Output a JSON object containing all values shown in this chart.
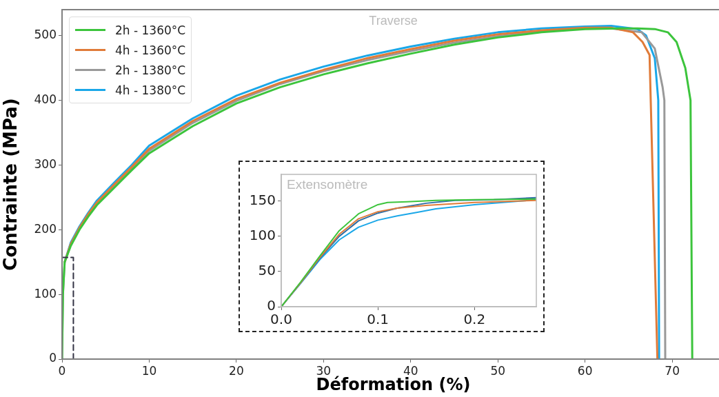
{
  "chart_data": [
    {
      "type": "line",
      "xlabel": "Déformation (%)",
      "ylabel": "Contrainte (MPa)",
      "annotations": [
        "Traverse"
      ],
      "legend": "top left",
      "xlim": [
        0,
        76
      ],
      "xticks": [
        0,
        10,
        20,
        30,
        40,
        50,
        60,
        70
      ],
      "ylim": [
        0,
        540
      ],
      "yticks": [
        0,
        100,
        200,
        300,
        400,
        500
      ],
      "series": [
        {
          "color": "#333344",
          "line_style": "dashed",
          "x": [
            0,
            1.3,
            1.3,
            0
          ],
          "values": [
            157,
            157,
            0,
            0
          ]
        },
        {
          "name": "2h - 1360°C",
          "color": "#3cc43c",
          "x": [
            0,
            0.1,
            0.3,
            1,
            2,
            3,
            4,
            6,
            8,
            10,
            15,
            20,
            25,
            30,
            35,
            40,
            45,
            50,
            55,
            60,
            64,
            66,
            68,
            69.5,
            70.5,
            71.5,
            72.1,
            72.3
          ],
          "values": [
            0,
            100,
            150,
            175,
            200,
            220,
            238,
            265,
            292,
            318,
            360,
            395,
            420,
            440,
            457,
            472,
            486,
            497,
            505,
            510,
            511,
            511,
            510,
            505,
            490,
            450,
            400,
            0
          ]
        },
        {
          "name": "4h - 1360°C",
          "color": "#e07b39",
          "x": [
            0.3,
            1,
            2,
            3,
            4,
            6,
            8,
            10,
            15,
            20,
            25,
            30,
            35,
            40,
            45,
            50,
            55,
            60,
            63,
            65.5,
            66.6,
            67.4,
            68.3
          ],
          "values": [
            150,
            178,
            203,
            224,
            242,
            270,
            297,
            325,
            368,
            402,
            427,
            447,
            465,
            479,
            492,
            502,
            508,
            512,
            512,
            505,
            490,
            470,
            0
          ]
        },
        {
          "name": "2h - 1380°C",
          "color": "#999999",
          "x": [
            0,
            0.1,
            0.3,
            1,
            2,
            3,
            4,
            6,
            8,
            10,
            15,
            20,
            25,
            30,
            35,
            40,
            45,
            50,
            55,
            60,
            63,
            66.5,
            68,
            68.9,
            69.1,
            69.2
          ],
          "values": [
            0,
            100,
            150,
            177,
            202,
            222,
            240,
            268,
            295,
            322,
            365,
            399,
            425,
            445,
            462,
            476,
            489,
            499,
            506,
            511,
            511,
            505,
            480,
            420,
            400,
            0
          ]
        },
        {
          "name": "4h - 1380°C",
          "color": "#1aa7e8",
          "x": [
            0.3,
            1,
            2,
            3,
            4,
            6,
            8,
            10,
            15,
            20,
            25,
            30,
            35,
            40,
            45,
            50,
            55,
            60,
            63,
            66,
            67,
            68,
            68.4,
            68.5
          ],
          "values": [
            150,
            180,
            205,
            226,
            245,
            273,
            300,
            330,
            372,
            407,
            432,
            452,
            469,
            483,
            495,
            505,
            511,
            514,
            515,
            510,
            500,
            465,
            400,
            0
          ]
        }
      ]
    },
    {
      "type": "line",
      "annotations": [
        "Extensomètre"
      ],
      "xlim": [
        0,
        0.264
      ],
      "xticks": [
        {
          "value": 0,
          "label": "0.0"
        },
        0.1,
        0.2
      ],
      "ylim": [
        0,
        188
      ],
      "yticks": [
        0,
        50,
        100,
        150
      ],
      "series": [
        {
          "color": "#3cc43c",
          "x": [
            0,
            0.02,
            0.04,
            0.06,
            0.08,
            0.1,
            0.11,
            0.13,
            0.16,
            0.2,
            0.264
          ],
          "values": [
            0,
            35,
            72,
            108,
            132,
            145,
            148,
            149,
            151,
            152,
            153
          ]
        },
        {
          "color": "#e07b39",
          "x": [
            0,
            0.02,
            0.04,
            0.06,
            0.08,
            0.1,
            0.12,
            0.15,
            0.2,
            0.264
          ],
          "values": [
            0,
            34,
            70,
            103,
            125,
            135,
            140,
            144,
            148,
            151
          ]
        },
        {
          "color": "#2e6da4",
          "x": [
            0,
            0.02,
            0.04,
            0.06,
            0.08,
            0.1,
            0.12,
            0.15,
            0.18,
            0.22,
            0.264
          ],
          "values": [
            0,
            34,
            69,
            100,
            122,
            133,
            140,
            147,
            151,
            152,
            155
          ]
        },
        {
          "color": "#1aa7e8",
          "x": [
            0,
            0.02,
            0.04,
            0.06,
            0.08,
            0.1,
            0.12,
            0.14,
            0.16,
            0.2,
            0.264
          ],
          "values": [
            0,
            33,
            67,
            95,
            113,
            123,
            129,
            134,
            139,
            145,
            152
          ]
        }
      ]
    }
  ]
}
